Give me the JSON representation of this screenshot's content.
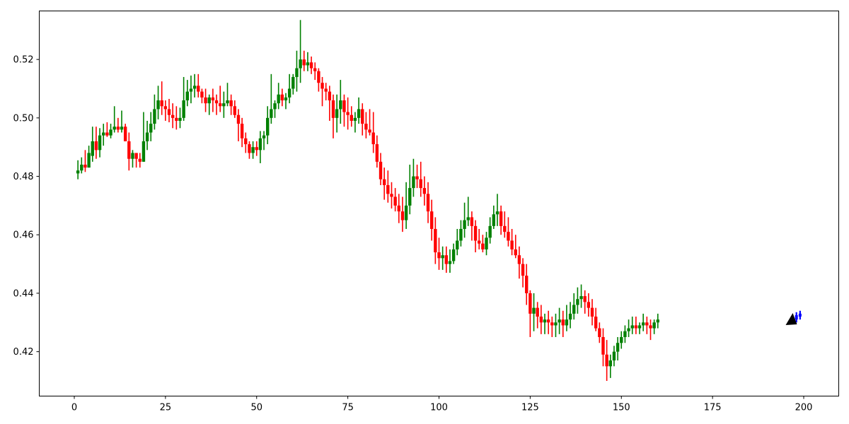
{
  "chart_data": {
    "type": "candlestick",
    "xlim": [
      -9.6,
      209.6
    ],
    "ylim": [
      0.4048,
      0.5366
    ],
    "x_ticks": [
      0,
      25,
      50,
      75,
      100,
      125,
      150,
      175,
      200
    ],
    "y_ticks": [
      0.42,
      0.44,
      0.46,
      0.48,
      0.5,
      0.52
    ],
    "x_tick_labels": [
      "0",
      "25",
      "50",
      "75",
      "100",
      "125",
      "150",
      "175",
      "200"
    ],
    "y_tick_labels": [
      "0.42",
      "0.44",
      "0.46",
      "0.48",
      "0.50",
      "0.52"
    ],
    "grid": false,
    "colors": {
      "up": "#008000",
      "down": "#ff0000",
      "forecast": "#0000ff",
      "marker": "#000000"
    },
    "series": [
      {
        "role": "history",
        "ohlc": [
          [
            1,
            0.481,
            0.4855,
            0.479,
            0.482
          ],
          [
            2,
            0.482,
            0.4865,
            0.481,
            0.484
          ],
          [
            3,
            0.484,
            0.489,
            0.4815,
            0.483
          ],
          [
            4,
            0.483,
            0.4905,
            0.483,
            0.488
          ],
          [
            5,
            0.487,
            0.497,
            0.485,
            0.492
          ],
          [
            6,
            0.492,
            0.497,
            0.486,
            0.489
          ],
          [
            7,
            0.489,
            0.4965,
            0.4865,
            0.494
          ],
          [
            8,
            0.494,
            0.498,
            0.4905,
            0.495
          ],
          [
            9,
            0.495,
            0.4985,
            0.4935,
            0.494
          ],
          [
            10,
            0.494,
            0.498,
            0.493,
            0.496
          ],
          [
            11,
            0.496,
            0.504,
            0.495,
            0.497
          ],
          [
            12,
            0.497,
            0.5,
            0.495,
            0.496
          ],
          [
            13,
            0.496,
            0.5025,
            0.495,
            0.497
          ],
          [
            14,
            0.497,
            0.498,
            0.492,
            0.492
          ],
          [
            15,
            0.492,
            0.495,
            0.482,
            0.486
          ],
          [
            16,
            0.486,
            0.489,
            0.483,
            0.488
          ],
          [
            17,
            0.488,
            0.488,
            0.483,
            0.486
          ],
          [
            18,
            0.486,
            0.488,
            0.483,
            0.485
          ],
          [
            19,
            0.485,
            0.502,
            0.485,
            0.492
          ],
          [
            20,
            0.492,
            0.499,
            0.489,
            0.495
          ],
          [
            21,
            0.495,
            0.502,
            0.492,
            0.498
          ],
          [
            22,
            0.498,
            0.508,
            0.496,
            0.503
          ],
          [
            23,
            0.503,
            0.511,
            0.4995,
            0.506
          ],
          [
            24,
            0.506,
            0.5125,
            0.501,
            0.504
          ],
          [
            25,
            0.504,
            0.506,
            0.499,
            0.503
          ],
          [
            26,
            0.503,
            0.5065,
            0.4985,
            0.501
          ],
          [
            27,
            0.501,
            0.505,
            0.4965,
            0.5
          ],
          [
            28,
            0.5,
            0.504,
            0.496,
            0.499
          ],
          [
            29,
            0.499,
            0.5035,
            0.4965,
            0.5
          ],
          [
            30,
            0.5,
            0.514,
            0.499,
            0.506
          ],
          [
            31,
            0.506,
            0.513,
            0.504,
            0.509
          ],
          [
            32,
            0.509,
            0.5145,
            0.505,
            0.51
          ],
          [
            33,
            0.51,
            0.515,
            0.507,
            0.511
          ],
          [
            34,
            0.511,
            0.515,
            0.507,
            0.509
          ],
          [
            35,
            0.509,
            0.51,
            0.505,
            0.507
          ],
          [
            36,
            0.507,
            0.51,
            0.502,
            0.505
          ],
          [
            37,
            0.505,
            0.508,
            0.501,
            0.507
          ],
          [
            38,
            0.507,
            0.51,
            0.502,
            0.506
          ],
          [
            39,
            0.506,
            0.508,
            0.501,
            0.505
          ],
          [
            40,
            0.505,
            0.511,
            0.502,
            0.504
          ],
          [
            41,
            0.504,
            0.509,
            0.5,
            0.505
          ],
          [
            42,
            0.505,
            0.512,
            0.504,
            0.506
          ],
          [
            43,
            0.506,
            0.508,
            0.501,
            0.504
          ],
          [
            44,
            0.504,
            0.506,
            0.5,
            0.501
          ],
          [
            45,
            0.501,
            0.503,
            0.492,
            0.498
          ],
          [
            46,
            0.498,
            0.5,
            0.49,
            0.493
          ],
          [
            47,
            0.493,
            0.495,
            0.488,
            0.491
          ],
          [
            48,
            0.491,
            0.492,
            0.486,
            0.488
          ],
          [
            49,
            0.488,
            0.492,
            0.486,
            0.49
          ],
          [
            50,
            0.49,
            0.492,
            0.487,
            0.489
          ],
          [
            51,
            0.489,
            0.4955,
            0.4845,
            0.493
          ],
          [
            52,
            0.493,
            0.4955,
            0.489,
            0.494
          ],
          [
            53,
            0.494,
            0.504,
            0.491,
            0.5
          ],
          [
            54,
            0.5,
            0.515,
            0.498,
            0.503
          ],
          [
            55,
            0.503,
            0.506,
            0.5,
            0.505
          ],
          [
            56,
            0.505,
            0.512,
            0.503,
            0.508
          ],
          [
            57,
            0.508,
            0.51,
            0.504,
            0.506
          ],
          [
            58,
            0.506,
            0.5085,
            0.503,
            0.507
          ],
          [
            59,
            0.507,
            0.515,
            0.505,
            0.51
          ],
          [
            60,
            0.51,
            0.515,
            0.508,
            0.514
          ],
          [
            61,
            0.514,
            0.523,
            0.509,
            0.517
          ],
          [
            62,
            0.517,
            0.5335,
            0.512,
            0.52
          ],
          [
            63,
            0.52,
            0.523,
            0.516,
            0.518
          ],
          [
            64,
            0.518,
            0.5225,
            0.516,
            0.519
          ],
          [
            65,
            0.519,
            0.521,
            0.515,
            0.517
          ],
          [
            66,
            0.517,
            0.519,
            0.513,
            0.516
          ],
          [
            67,
            0.516,
            0.517,
            0.509,
            0.512
          ],
          [
            68,
            0.512,
            0.514,
            0.504,
            0.51
          ],
          [
            69,
            0.51,
            0.512,
            0.506,
            0.509
          ],
          [
            70,
            0.509,
            0.511,
            0.499,
            0.506
          ],
          [
            71,
            0.506,
            0.508,
            0.493,
            0.5
          ],
          [
            72,
            0.5,
            0.508,
            0.495,
            0.503
          ],
          [
            73,
            0.503,
            0.513,
            0.498,
            0.506
          ],
          [
            74,
            0.506,
            0.508,
            0.497,
            0.502
          ],
          [
            75,
            0.502,
            0.507,
            0.496,
            0.501
          ],
          [
            76,
            0.501,
            0.504,
            0.497,
            0.499
          ],
          [
            77,
            0.499,
            0.502,
            0.495,
            0.5
          ],
          [
            78,
            0.5,
            0.507,
            0.498,
            0.503
          ],
          [
            79,
            0.503,
            0.505,
            0.494,
            0.498
          ],
          [
            80,
            0.498,
            0.502,
            0.493,
            0.496
          ],
          [
            81,
            0.496,
            0.503,
            0.494,
            0.495
          ],
          [
            82,
            0.495,
            0.502,
            0.488,
            0.491
          ],
          [
            83,
            0.491,
            0.494,
            0.483,
            0.485
          ],
          [
            84,
            0.485,
            0.488,
            0.477,
            0.479
          ],
          [
            85,
            0.479,
            0.483,
            0.472,
            0.477
          ],
          [
            86,
            0.477,
            0.482,
            0.471,
            0.474
          ],
          [
            87,
            0.474,
            0.478,
            0.469,
            0.473
          ],
          [
            88,
            0.473,
            0.476,
            0.468,
            0.47
          ],
          [
            89,
            0.47,
            0.474,
            0.464,
            0.468
          ],
          [
            90,
            0.468,
            0.473,
            0.461,
            0.465
          ],
          [
            91,
            0.465,
            0.478,
            0.462,
            0.47
          ],
          [
            92,
            0.47,
            0.484,
            0.467,
            0.476
          ],
          [
            93,
            0.476,
            0.486,
            0.473,
            0.48
          ],
          [
            94,
            0.48,
            0.484,
            0.476,
            0.479
          ],
          [
            95,
            0.479,
            0.485,
            0.473,
            0.476
          ],
          [
            96,
            0.476,
            0.48,
            0.47,
            0.474
          ],
          [
            97,
            0.474,
            0.478,
            0.464,
            0.468
          ],
          [
            98,
            0.468,
            0.472,
            0.458,
            0.462
          ],
          [
            99,
            0.462,
            0.466,
            0.45,
            0.454
          ],
          [
            100,
            0.454,
            0.459,
            0.448,
            0.452
          ],
          [
            101,
            0.452,
            0.456,
            0.448,
            0.453
          ],
          [
            102,
            0.453,
            0.456,
            0.447,
            0.45
          ],
          [
            103,
            0.45,
            0.455,
            0.447,
            0.451
          ],
          [
            104,
            0.451,
            0.457,
            0.45,
            0.455
          ],
          [
            105,
            0.455,
            0.462,
            0.453,
            0.458
          ],
          [
            106,
            0.458,
            0.465,
            0.456,
            0.462
          ],
          [
            107,
            0.462,
            0.471,
            0.459,
            0.465
          ],
          [
            108,
            0.465,
            0.473,
            0.463,
            0.466
          ],
          [
            109,
            0.466,
            0.468,
            0.458,
            0.463
          ],
          [
            110,
            0.463,
            0.465,
            0.454,
            0.458
          ],
          [
            111,
            0.458,
            0.462,
            0.455,
            0.457
          ],
          [
            112,
            0.457,
            0.46,
            0.454,
            0.455
          ],
          [
            113,
            0.455,
            0.461,
            0.453,
            0.459
          ],
          [
            114,
            0.459,
            0.466,
            0.457,
            0.463
          ],
          [
            115,
            0.463,
            0.47,
            0.462,
            0.467
          ],
          [
            116,
            0.467,
            0.474,
            0.463,
            0.468
          ],
          [
            117,
            0.468,
            0.47,
            0.46,
            0.463
          ],
          [
            118,
            0.463,
            0.468,
            0.459,
            0.461
          ],
          [
            119,
            0.461,
            0.466,
            0.456,
            0.458
          ],
          [
            120,
            0.458,
            0.462,
            0.453,
            0.455
          ],
          [
            121,
            0.455,
            0.46,
            0.452,
            0.453
          ],
          [
            122,
            0.453,
            0.456,
            0.445,
            0.45
          ],
          [
            123,
            0.45,
            0.452,
            0.442,
            0.446
          ],
          [
            124,
            0.446,
            0.45,
            0.436,
            0.44
          ],
          [
            125,
            0.44,
            0.441,
            0.425,
            0.433
          ],
          [
            126,
            0.433,
            0.44,
            0.427,
            0.435
          ],
          [
            127,
            0.435,
            0.437,
            0.428,
            0.432
          ],
          [
            128,
            0.432,
            0.436,
            0.426,
            0.43
          ],
          [
            129,
            0.43,
            0.433,
            0.426,
            0.431
          ],
          [
            130,
            0.431,
            0.434,
            0.426,
            0.43
          ],
          [
            131,
            0.43,
            0.432,
            0.425,
            0.429
          ],
          [
            132,
            0.429,
            0.433,
            0.425,
            0.43
          ],
          [
            133,
            0.43,
            0.435,
            0.426,
            0.431
          ],
          [
            134,
            0.431,
            0.434,
            0.425,
            0.429
          ],
          [
            135,
            0.429,
            0.436,
            0.427,
            0.431
          ],
          [
            136,
            0.431,
            0.437,
            0.428,
            0.433
          ],
          [
            137,
            0.433,
            0.44,
            0.431,
            0.436
          ],
          [
            138,
            0.436,
            0.442,
            0.433,
            0.438
          ],
          [
            139,
            0.438,
            0.443,
            0.435,
            0.439
          ],
          [
            140,
            0.439,
            0.441,
            0.433,
            0.437
          ],
          [
            141,
            0.437,
            0.44,
            0.432,
            0.435
          ],
          [
            142,
            0.435,
            0.438,
            0.429,
            0.432
          ],
          [
            143,
            0.432,
            0.435,
            0.427,
            0.428
          ],
          [
            144,
            0.428,
            0.43,
            0.423,
            0.425
          ],
          [
            145,
            0.425,
            0.428,
            0.415,
            0.419
          ],
          [
            146,
            0.419,
            0.424,
            0.41,
            0.415
          ],
          [
            147,
            0.415,
            0.419,
            0.411,
            0.417
          ],
          [
            148,
            0.417,
            0.422,
            0.415,
            0.42
          ],
          [
            149,
            0.42,
            0.425,
            0.417,
            0.423
          ],
          [
            150,
            0.423,
            0.427,
            0.421,
            0.425
          ],
          [
            151,
            0.425,
            0.429,
            0.423,
            0.427
          ],
          [
            152,
            0.427,
            0.431,
            0.425,
            0.428
          ],
          [
            153,
            0.428,
            0.432,
            0.426,
            0.429
          ],
          [
            154,
            0.429,
            0.432,
            0.426,
            0.428
          ],
          [
            155,
            0.428,
            0.43,
            0.426,
            0.429
          ],
          [
            156,
            0.429,
            0.433,
            0.427,
            0.43
          ],
          [
            157,
            0.43,
            0.432,
            0.426,
            0.429
          ],
          [
            158,
            0.429,
            0.431,
            0.424,
            0.428
          ],
          [
            159,
            0.428,
            0.431,
            0.426,
            0.43
          ],
          [
            160,
            0.43,
            0.433,
            0.428,
            0.431
          ]
        ]
      }
    ]
  }
}
